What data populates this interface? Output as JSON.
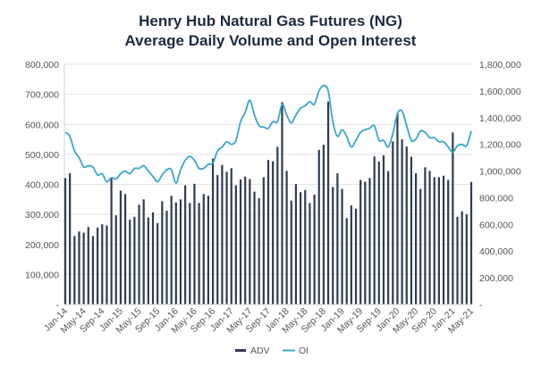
{
  "chart_data": {
    "type": "bar+line",
    "title": "Henry Hub Natural Gas Futures (NG)",
    "subtitle": "Average Daily Volume and Open Interest",
    "x_start": "Jan-14",
    "x_end": "May-21",
    "frequency": "monthly",
    "x_tick_labels": [
      "Jan-14",
      "May-14",
      "Sep-14",
      "Jan-15",
      "May-15",
      "Sep-15",
      "Jan-16",
      "May-16",
      "Sep-16",
      "Jan-17",
      "May-17",
      "Sep-17",
      "Jan-18",
      "May-18",
      "Sep-18",
      "Jan-19",
      "May-19",
      "Sep-19",
      "Jan-20",
      "May-20",
      "Sep-20",
      "Jan-21",
      "May-21"
    ],
    "left_axis": {
      "ylim": [
        0,
        800000
      ],
      "ticks": [
        "-",
        "100,000",
        "200,000",
        "300,000",
        "400,000",
        "500,000",
        "600,000",
        "700,000",
        "800,000"
      ]
    },
    "right_axis": {
      "ylim": [
        0,
        1800000
      ],
      "ticks": [
        "-",
        "200,000",
        "400,000",
        "600,000",
        "800,000",
        "1,000,000",
        "1,200,000",
        "1,400,000",
        "1,600,000",
        "1,800,000"
      ]
    },
    "grid": true,
    "legend_position": "bottom",
    "series": [
      {
        "name": "ADV",
        "type": "bar",
        "axis": "left",
        "color": "#2f3d4e",
        "values": [
          421000,
          437000,
          228000,
          243000,
          239000,
          258000,
          228000,
          256000,
          267000,
          263000,
          423000,
          297000,
          379000,
          368000,
          282000,
          292000,
          332000,
          350000,
          290000,
          307000,
          271000,
          344000,
          312000,
          362000,
          340000,
          350000,
          397000,
          338000,
          402000,
          338000,
          368000,
          362000,
          486000,
          431000,
          465000,
          442000,
          454000,
          397000,
          416000,
          426000,
          418000,
          376000,
          354000,
          424000,
          481000,
          477000,
          525000,
          674000,
          445000,
          346000,
          401000,
          374000,
          381000,
          338000,
          366000,
          515000,
          532000,
          676000,
          391000,
          437000,
          385000,
          288000,
          330000,
          319000,
          415000,
          409000,
          421000,
          493000,
          476000,
          497000,
          444000,
          543000,
          634000,
          550000,
          526000,
          492000,
          437000,
          385000,
          457000,
          445000,
          424000,
          424000,
          429000,
          415000,
          573000,
          292000,
          310000,
          300000,
          408000
        ]
      },
      {
        "name": "OI",
        "type": "line",
        "axis": "right",
        "color": "#39a6c9",
        "values": [
          1290000,
          1260000,
          1150000,
          1100000,
          1030000,
          1040000,
          1030000,
          970000,
          980000,
          920000,
          950000,
          940000,
          980000,
          1000000,
          980000,
          1020000,
          1020000,
          1040000,
          1000000,
          960000,
          920000,
          970000,
          1010000,
          1010000,
          910000,
          1010000,
          1080000,
          1110000,
          1080000,
          1020000,
          1020000,
          1050000,
          1060000,
          1150000,
          1180000,
          1220000,
          1200000,
          1230000,
          1370000,
          1440000,
          1530000,
          1420000,
          1340000,
          1330000,
          1320000,
          1370000,
          1370000,
          1500000,
          1420000,
          1360000,
          1420000,
          1470000,
          1490000,
          1520000,
          1500000,
          1600000,
          1640000,
          1600000,
          1370000,
          1260000,
          1310000,
          1260000,
          1180000,
          1230000,
          1290000,
          1310000,
          1320000,
          1340000,
          1230000,
          1230000,
          1180000,
          1280000,
          1430000,
          1450000,
          1340000,
          1230000,
          1240000,
          1300000,
          1290000,
          1250000,
          1250000,
          1220000,
          1220000,
          1180000,
          1140000,
          1190000,
          1200000,
          1190000,
          1300000
        ]
      }
    ]
  }
}
